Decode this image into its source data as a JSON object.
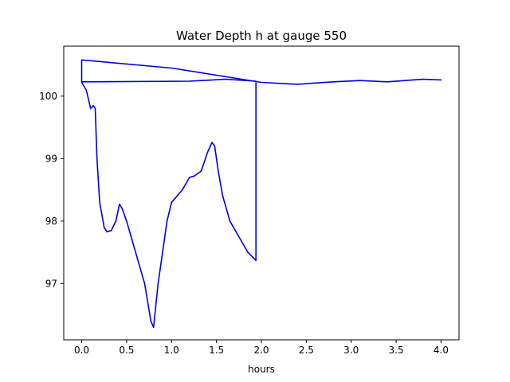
{
  "chart_data": {
    "type": "line",
    "title": "Water Depth h at gauge 550",
    "xlabel": "hours",
    "ylabel": "",
    "xlim": [
      -0.2,
      4.2
    ],
    "ylim": [
      96.1,
      100.8
    ],
    "xticks": [
      0.0,
      0.5,
      1.0,
      1.5,
      2.0,
      2.5,
      3.0,
      3.5,
      4.0
    ],
    "xtick_labels": [
      "0.0",
      "0.5",
      "1.0",
      "1.5",
      "2.0",
      "2.5",
      "3.0",
      "3.5",
      "4.0"
    ],
    "yticks": [
      97,
      98,
      99,
      100
    ],
    "ytick_labels": [
      "97",
      "98",
      "99",
      "100"
    ],
    "grid": false,
    "series": [
      {
        "color": "#0000dd",
        "points": [
          [
            0.0,
            100.58
          ],
          [
            0.0,
            100.23
          ],
          [
            1.2,
            100.24
          ],
          [
            1.6,
            100.27
          ],
          [
            1.94,
            100.24
          ],
          [
            1.94,
            97.37
          ],
          [
            1.85,
            97.5
          ],
          [
            1.75,
            97.75
          ],
          [
            1.65,
            98.0
          ],
          [
            1.57,
            98.4
          ],
          [
            1.52,
            98.8
          ],
          [
            1.48,
            99.2
          ],
          [
            1.45,
            99.26
          ],
          [
            1.4,
            99.1
          ],
          [
            1.33,
            98.8
          ],
          [
            1.25,
            98.72
          ],
          [
            1.2,
            98.7
          ],
          [
            1.12,
            98.5
          ],
          [
            1.0,
            98.3
          ],
          [
            0.95,
            98.0
          ],
          [
            0.9,
            97.5
          ],
          [
            0.85,
            97.0
          ],
          [
            0.8,
            96.3
          ],
          [
            0.77,
            96.4
          ],
          [
            0.7,
            97.0
          ],
          [
            0.6,
            97.5
          ],
          [
            0.5,
            98.0
          ],
          [
            0.45,
            98.2
          ],
          [
            0.42,
            98.27
          ],
          [
            0.38,
            98.0
          ],
          [
            0.33,
            97.85
          ],
          [
            0.28,
            97.83
          ],
          [
            0.25,
            97.9
          ],
          [
            0.2,
            98.3
          ],
          [
            0.17,
            99.0
          ],
          [
            0.15,
            99.8
          ],
          [
            0.13,
            99.85
          ],
          [
            0.1,
            99.8
          ],
          [
            0.05,
            100.1
          ],
          [
            0.0,
            100.22
          ],
          [
            0.0,
            100.58
          ],
          [
            1.0,
            100.45
          ],
          [
            2.0,
            100.22
          ],
          [
            2.4,
            100.19
          ],
          [
            2.8,
            100.23
          ],
          [
            3.1,
            100.25
          ],
          [
            3.4,
            100.23
          ],
          [
            3.8,
            100.27
          ],
          [
            4.0,
            100.26
          ]
        ]
      }
    ]
  }
}
